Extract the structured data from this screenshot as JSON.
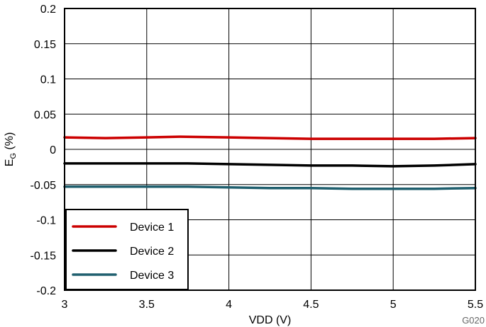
{
  "chart_data": {
    "type": "line",
    "xlabel": "VDD (V)",
    "ylabel": "E",
    "ylabel_sub": "G",
    "ylabel_unit": " (%)",
    "figure_id": "G020",
    "xlim": [
      3,
      5.5
    ],
    "ylim": [
      -0.2,
      0.2
    ],
    "x_ticks": [
      3,
      3.5,
      4,
      4.5,
      5,
      5.5
    ],
    "x_tick_labels": [
      "3",
      "3.5",
      "4",
      "4.5",
      "5",
      "5.5"
    ],
    "y_ticks": [
      0.2,
      0.15,
      0.1,
      0.05,
      0,
      -0.05,
      -0.1,
      -0.15,
      -0.2
    ],
    "y_tick_labels": [
      "0.2",
      "0.15",
      "0.1",
      "0.05",
      "0",
      "-0.05",
      "-0.1",
      "-0.15",
      "-0.2"
    ],
    "grid": true,
    "legend_position": "bottom-left",
    "series": [
      {
        "name": "Device 1",
        "color": "#cc0000",
        "x": [
          3,
          3.25,
          3.5,
          3.7,
          4,
          4.25,
          4.5,
          4.75,
          5,
          5.25,
          5.5
        ],
        "y": [
          0.017,
          0.016,
          0.017,
          0.018,
          0.017,
          0.016,
          0.015,
          0.015,
          0.015,
          0.015,
          0.016
        ]
      },
      {
        "name": "Device 2",
        "color": "#000000",
        "x": [
          3,
          3.25,
          3.5,
          3.75,
          4,
          4.25,
          4.5,
          4.75,
          5,
          5.25,
          5.5
        ],
        "y": [
          -0.02,
          -0.02,
          -0.02,
          -0.02,
          -0.021,
          -0.022,
          -0.023,
          -0.023,
          -0.024,
          -0.023,
          -0.021
        ]
      },
      {
        "name": "Device 3",
        "color": "#1f5f6e",
        "x": [
          3,
          3.25,
          3.5,
          3.75,
          4,
          4.25,
          4.5,
          4.75,
          5,
          5.25,
          5.5
        ],
        "y": [
          -0.053,
          -0.053,
          -0.053,
          -0.053,
          -0.054,
          -0.055,
          -0.055,
          -0.056,
          -0.056,
          -0.056,
          -0.055
        ]
      }
    ]
  }
}
